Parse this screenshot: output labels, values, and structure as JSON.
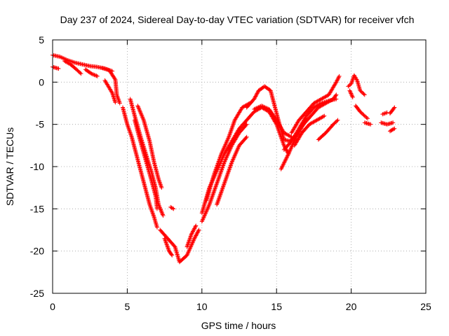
{
  "chart_data": {
    "type": "scatter",
    "title": "Day 237 of 2024, Sidereal Day-to-day VTEC variation (SDTVAR) for receiver vfch",
    "xlabel": "GPS time / hours",
    "ylabel": "SDTVAR / TECUs",
    "xlim": [
      0,
      25
    ],
    "ylim": [
      -25,
      5
    ],
    "xticks": [
      0,
      5,
      10,
      15,
      20,
      25
    ],
    "yticks": [
      5,
      0,
      -5,
      -10,
      -15,
      -20,
      -25
    ],
    "grid": true,
    "marker": "+",
    "series": [
      {
        "name": "vfch",
        "color": "#ff0000",
        "tracks": [
          [
            [
              0.0,
              3.2
            ],
            [
              0.5,
              3.0
            ],
            [
              1.0,
              2.6
            ],
            [
              1.5,
              2.3
            ],
            [
              2.0,
              2.1
            ],
            [
              2.5,
              1.9
            ],
            [
              3.0,
              1.8
            ],
            [
              3.5,
              1.6
            ],
            [
              4.0,
              1.3
            ]
          ],
          [
            [
              0.0,
              1.8
            ],
            [
              0.4,
              1.6
            ]
          ],
          [
            [
              0.8,
              2.5
            ],
            [
              1.2,
              2.1
            ],
            [
              1.6,
              1.5
            ],
            [
              1.9,
              1.0
            ]
          ],
          [
            [
              2.2,
              1.5
            ],
            [
              2.6,
              1.0
            ],
            [
              3.0,
              0.7
            ]
          ],
          [
            [
              3.3,
              1.7
            ],
            [
              3.8,
              1.4
            ],
            [
              4.2,
              0.3
            ],
            [
              4.3,
              -1.5
            ],
            [
              4.5,
              -2.5
            ]
          ],
          [
            [
              3.5,
              0.2
            ],
            [
              4.0,
              -1.3
            ],
            [
              4.2,
              -2.4
            ]
          ],
          [
            [
              4.7,
              -3.0
            ],
            [
              5.0,
              -5.0
            ],
            [
              5.3,
              -6.5
            ],
            [
              5.6,
              -8.5
            ],
            [
              5.9,
              -10.5
            ],
            [
              6.2,
              -12.5
            ],
            [
              6.5,
              -14.5
            ],
            [
              6.8,
              -16.0
            ],
            [
              7.0,
              -17.2
            ]
          ],
          [
            [
              5.2,
              -2.0
            ],
            [
              5.5,
              -4.0
            ],
            [
              5.9,
              -6.5
            ],
            [
              6.3,
              -8.8
            ],
            [
              6.6,
              -10.5
            ],
            [
              6.9,
              -12.5
            ],
            [
              7.1,
              -14.5
            ],
            [
              7.4,
              -15.8
            ]
          ],
          [
            [
              5.5,
              -4.5
            ],
            [
              5.8,
              -6.5
            ],
            [
              6.2,
              -9.0
            ],
            [
              6.6,
              -11.5
            ],
            [
              6.9,
              -13.5
            ],
            [
              7.0,
              -15.0
            ]
          ],
          [
            [
              5.7,
              -2.8
            ],
            [
              6.1,
              -4.5
            ],
            [
              6.5,
              -7.0
            ],
            [
              6.8,
              -9.5
            ],
            [
              7.1,
              -11.5
            ],
            [
              7.3,
              -12.5
            ]
          ],
          [
            [
              7.2,
              -17.5
            ],
            [
              7.7,
              -18.5
            ],
            [
              8.2,
              -19.5
            ],
            [
              8.5,
              -21.3
            ],
            [
              9.0,
              -20.5
            ],
            [
              9.5,
              -18.5
            ],
            [
              9.8,
              -17.5
            ]
          ],
          [
            [
              7.5,
              -18.5
            ],
            [
              7.8,
              -20.0
            ],
            [
              8.0,
              -20.5
            ]
          ],
          [
            [
              7.9,
              -14.8
            ],
            [
              8.1,
              -15.0
            ]
          ],
          [
            [
              9.0,
              -19.5
            ],
            [
              9.3,
              -18.0
            ],
            [
              9.6,
              -17.0
            ]
          ],
          [
            [
              10.0,
              -15.5
            ],
            [
              10.5,
              -12.5
            ],
            [
              11.0,
              -10.5
            ],
            [
              11.5,
              -8.5
            ],
            [
              12.0,
              -7.0
            ],
            [
              12.5,
              -5.5
            ],
            [
              13.0,
              -4.5
            ],
            [
              13.5,
              -3.5
            ],
            [
              14.0,
              -3.0
            ],
            [
              14.5,
              -3.5
            ],
            [
              15.0,
              -5.0
            ],
            [
              15.5,
              -7.5
            ],
            [
              15.8,
              -8.5
            ]
          ],
          [
            [
              10.0,
              -16.5
            ],
            [
              10.5,
              -14.5
            ],
            [
              11.0,
              -12.0
            ],
            [
              11.5,
              -9.5
            ],
            [
              12.0,
              -7.5
            ],
            [
              12.5,
              -6.0
            ],
            [
              13.0,
              -5.0
            ]
          ],
          [
            [
              10.3,
              -14.0
            ],
            [
              10.8,
              -11.0
            ],
            [
              11.3,
              -8.5
            ],
            [
              11.8,
              -6.5
            ],
            [
              12.2,
              -4.5
            ],
            [
              12.7,
              -3.0
            ],
            [
              13.2,
              -2.5
            ]
          ],
          [
            [
              11.0,
              -14.5
            ],
            [
              11.5,
              -12.0
            ],
            [
              12.0,
              -9.5
            ],
            [
              12.5,
              -7.5
            ],
            [
              13.0,
              -6.5
            ]
          ],
          [
            [
              13.0,
              -3.0
            ],
            [
              13.5,
              -2.0
            ],
            [
              13.8,
              -1.0
            ],
            [
              14.2,
              -0.5
            ],
            [
              14.6,
              -1.0
            ],
            [
              14.9,
              -3.0
            ],
            [
              15.2,
              -5.0
            ],
            [
              15.5,
              -6.8
            ],
            [
              15.9,
              -7.0
            ],
            [
              16.4,
              -6.0
            ],
            [
              17.0,
              -4.5
            ]
          ],
          [
            [
              13.5,
              -3.2
            ],
            [
              14.0,
              -2.8
            ],
            [
              14.5,
              -3.2
            ],
            [
              15.0,
              -4.5
            ],
            [
              15.5,
              -6.0
            ],
            [
              16.0,
              -6.5
            ]
          ],
          [
            [
              15.3,
              -10.3
            ],
            [
              15.8,
              -8.5
            ],
            [
              16.3,
              -6.5
            ],
            [
              16.8,
              -5.0
            ],
            [
              17.3,
              -4.0
            ],
            [
              17.8,
              -3.0
            ],
            [
              18.3,
              -2.5
            ],
            [
              18.8,
              -2.0
            ],
            [
              19.0,
              -1.5
            ]
          ],
          [
            [
              15.5,
              -8.0
            ],
            [
              16.0,
              -7.0
            ],
            [
              16.5,
              -5.5
            ],
            [
              17.0,
              -4.0
            ],
            [
              17.5,
              -3.0
            ],
            [
              18.0,
              -2.5
            ],
            [
              18.5,
              -2.2
            ],
            [
              19.0,
              -2.0
            ]
          ],
          [
            [
              16.0,
              -6.0
            ],
            [
              16.5,
              -4.5
            ],
            [
              17.0,
              -3.5
            ],
            [
              17.5,
              -2.5
            ],
            [
              18.0,
              -2.0
            ],
            [
              18.5,
              -1.5
            ],
            [
              19.0,
              0.0
            ],
            [
              19.2,
              0.7
            ]
          ],
          [
            [
              16.2,
              -7.5
            ],
            [
              16.7,
              -6.0
            ],
            [
              17.2,
              -5.0
            ],
            [
              17.7,
              -4.5
            ],
            [
              18.2,
              -4.0
            ]
          ],
          [
            [
              17.8,
              -6.8
            ],
            [
              18.3,
              -6.0
            ],
            [
              18.8,
              -5.0
            ],
            [
              19.1,
              -4.5
            ]
          ],
          [
            [
              19.8,
              -0.5
            ],
            [
              20.0,
              -0.2
            ],
            [
              20.2,
              0.8
            ],
            [
              20.4,
              0.2
            ],
            [
              20.6,
              -1.0
            ],
            [
              20.9,
              -1.5
            ]
          ],
          [
            [
              19.9,
              -1.0
            ],
            [
              20.1,
              -1.8
            ]
          ],
          [
            [
              20.3,
              -2.8
            ],
            [
              20.6,
              -3.5
            ],
            [
              20.9,
              -4.0
            ],
            [
              21.1,
              -4.3
            ]
          ],
          [
            [
              20.9,
              -4.8
            ],
            [
              21.3,
              -5.0
            ]
          ],
          [
            [
              22.0,
              -4.8
            ],
            [
              22.4,
              -5.0
            ],
            [
              22.8,
              -4.8
            ]
          ],
          [
            [
              22.1,
              -3.8
            ],
            [
              22.4,
              -3.6
            ]
          ],
          [
            [
              22.6,
              -3.7
            ],
            [
              22.9,
              -3.0
            ]
          ],
          [
            [
              22.6,
              -5.8
            ],
            [
              22.9,
              -5.5
            ]
          ]
        ]
      }
    ]
  }
}
